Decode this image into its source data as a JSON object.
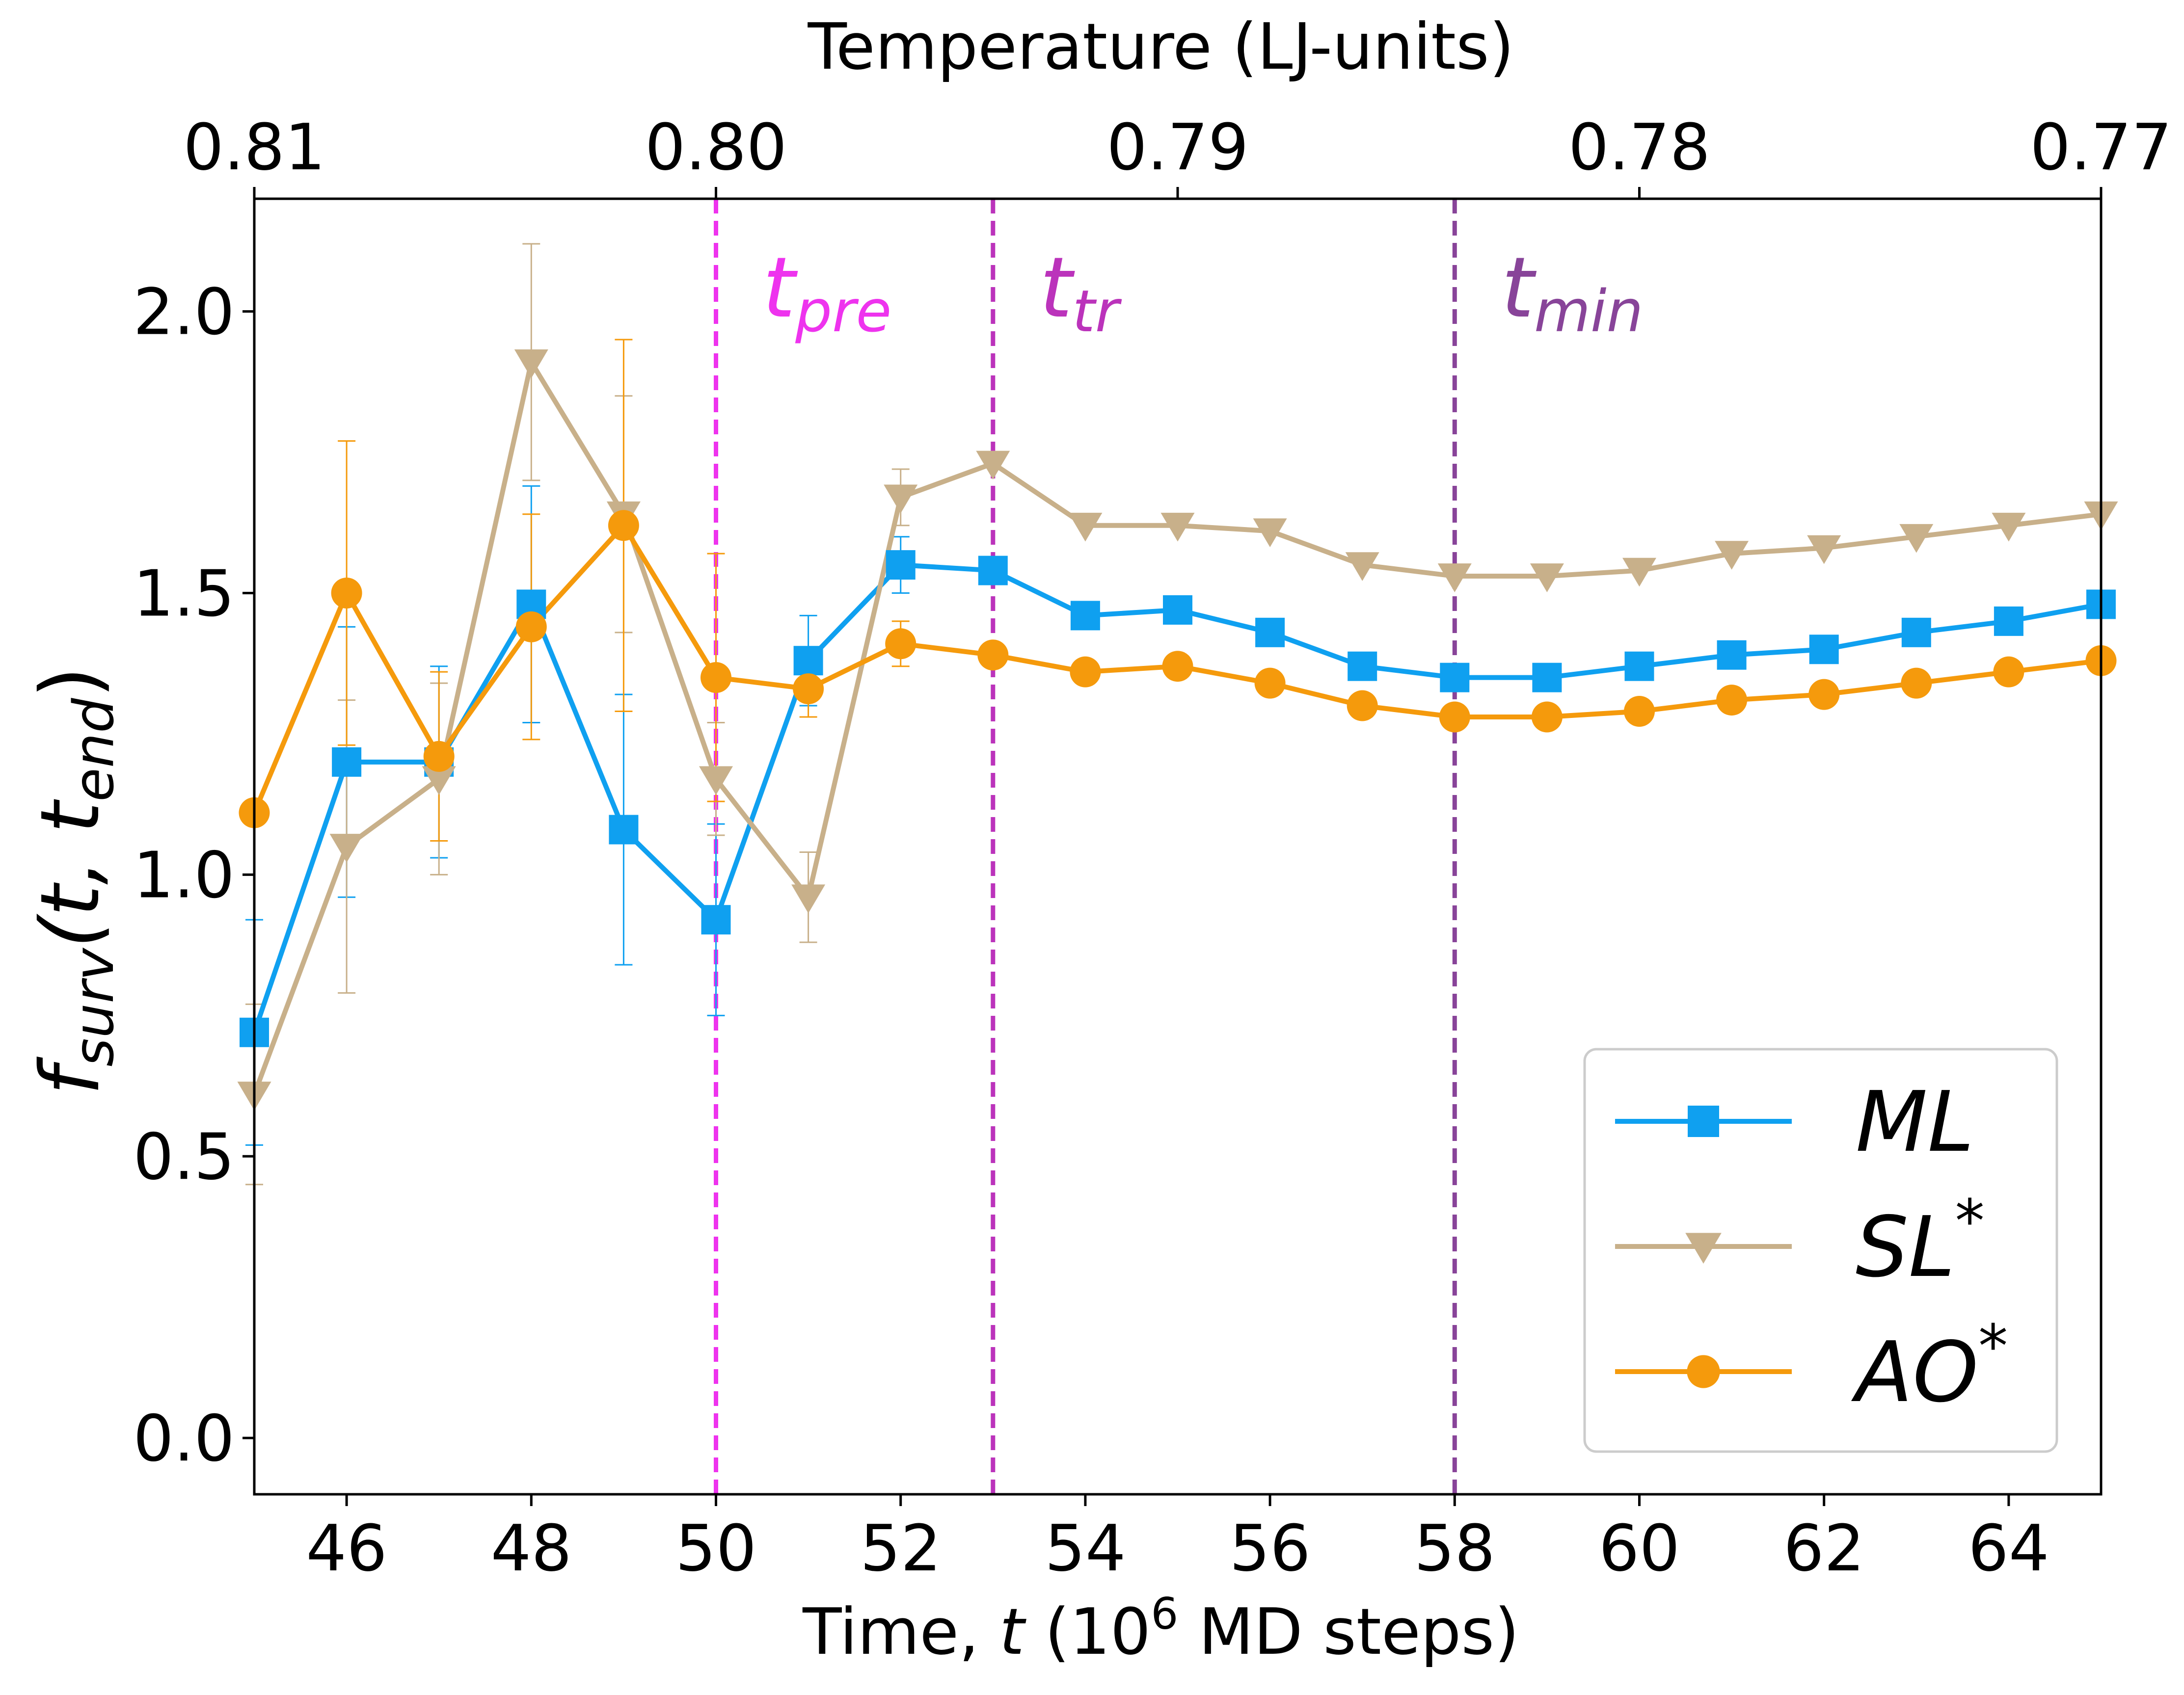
{
  "chart_data": {
    "type": "line",
    "xlabel": "Time, t (10⁶ MD steps)",
    "xlabel_parts": {
      "a": "Time, ",
      "t": "t",
      "b": " (10",
      "sup": "6",
      "c": " MD steps)"
    },
    "ylabel": "f_surv(t, t_end)",
    "ylabel_parts": {
      "f": "f",
      "fsub": "surv",
      "open": "(t, t",
      "tsub": "end",
      "close": ")"
    },
    "top_xlabel": "Temperature (LJ-units)",
    "xlim": [
      45,
      65
    ],
    "ylim": [
      -0.1,
      2.2
    ],
    "x_ticks": [
      46,
      48,
      50,
      52,
      54,
      56,
      58,
      60,
      62,
      64
    ],
    "y_ticks": [
      0.0,
      0.5,
      1.0,
      1.5,
      2.0
    ],
    "y_tick_labels": [
      "0.0",
      "0.5",
      "1.0",
      "1.5",
      "2.0"
    ],
    "top_ticks": [
      {
        "x": 45,
        "label": "0.81"
      },
      {
        "x": 50,
        "label": "0.80"
      },
      {
        "x": 55,
        "label": "0.79"
      },
      {
        "x": 60,
        "label": "0.78"
      },
      {
        "x": 65,
        "label": "0.77"
      }
    ],
    "grid": false,
    "legend_position": "lower-right",
    "vlines": [
      {
        "x": 50,
        "label": "t",
        "sub": "pre",
        "color": "#ee33ee"
      },
      {
        "x": 53,
        "label": "t",
        "sub": "tr",
        "color": "#bb33bb"
      },
      {
        "x": 58,
        "label": "t",
        "sub": "min",
        "color": "#884499"
      }
    ],
    "x": [
      45,
      46,
      47,
      48,
      49,
      50,
      51,
      52,
      53,
      54,
      55,
      56,
      57,
      58,
      59,
      60,
      61,
      62,
      63,
      64,
      65
    ],
    "series": [
      {
        "name": "ML",
        "name_sup": "",
        "color": "#0fa0f0",
        "marker": "square",
        "values": [
          0.72,
          1.2,
          1.2,
          1.48,
          1.08,
          0.92,
          1.38,
          1.55,
          1.54,
          1.46,
          1.47,
          1.43,
          1.37,
          1.35,
          1.35,
          1.37,
          1.39,
          1.4,
          1.43,
          1.45,
          1.48
        ],
        "errors": [
          0.2,
          0.24,
          0.17,
          0.21,
          0.24,
          0.17,
          0.08,
          0.05,
          0,
          0,
          0,
          0,
          0,
          0,
          0,
          0,
          0,
          0,
          0,
          0,
          0
        ]
      },
      {
        "name": "SL",
        "name_sup": "*",
        "color": "#c8b08a",
        "marker": "triangle-down",
        "values": [
          0.61,
          1.05,
          1.17,
          1.91,
          1.64,
          1.17,
          0.96,
          1.67,
          1.73,
          1.62,
          1.62,
          1.61,
          1.55,
          1.53,
          1.53,
          1.54,
          1.57,
          1.58,
          1.6,
          1.62,
          1.64
        ],
        "errors": [
          0.16,
          0.26,
          0.17,
          0.21,
          0.21,
          0.1,
          0.08,
          0.05,
          0,
          0,
          0,
          0,
          0,
          0,
          0,
          0,
          0,
          0,
          0,
          0,
          0
        ]
      },
      {
        "name": "AO",
        "name_sup": "*",
        "color": "#f59a0c",
        "marker": "circle",
        "values": [
          1.11,
          1.5,
          1.21,
          1.44,
          1.62,
          1.35,
          1.33,
          1.41,
          1.39,
          1.36,
          1.37,
          1.34,
          1.3,
          1.28,
          1.28,
          1.29,
          1.31,
          1.32,
          1.34,
          1.36,
          1.38
        ],
        "errors": [
          0,
          0.27,
          0.15,
          0.2,
          0.33,
          0.22,
          0.05,
          0.04,
          0,
          0,
          0,
          0,
          0,
          0,
          0,
          0,
          0,
          0,
          0,
          0,
          0
        ]
      }
    ]
  }
}
